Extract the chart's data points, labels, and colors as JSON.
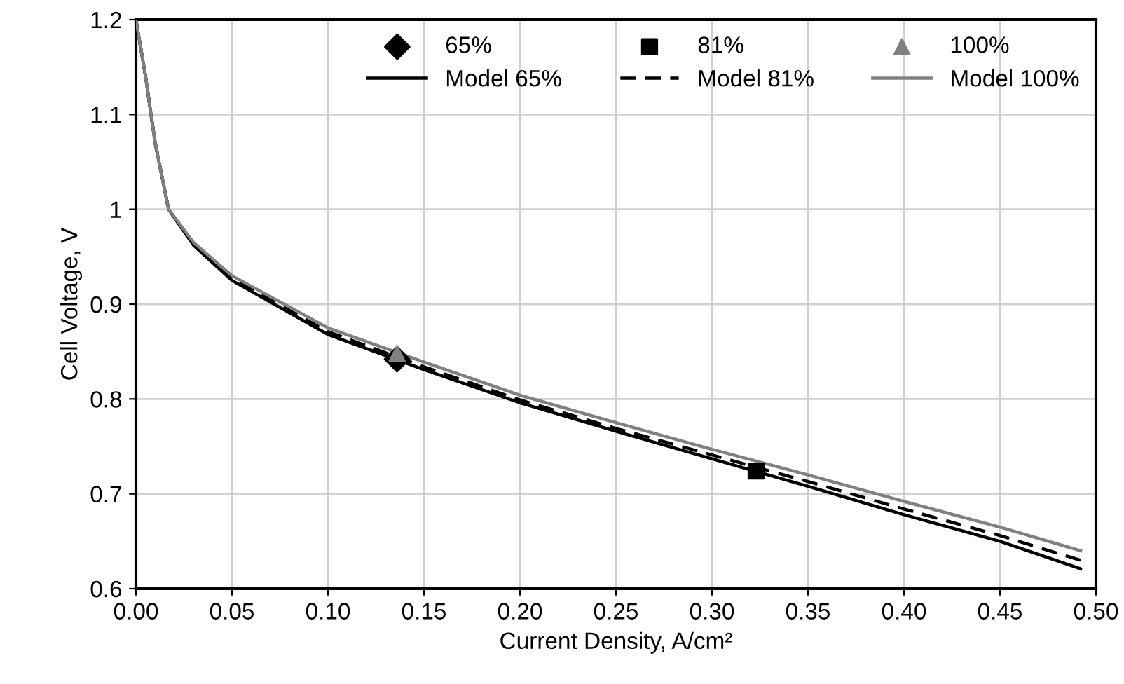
{
  "chart_data": {
    "type": "line",
    "xlabel": "Current Density, A/cm²",
    "ylabel": "Cell Voltage, V",
    "xlim": [
      0,
      0.5
    ],
    "ylim": [
      0.6,
      1.2
    ],
    "xticks": [
      {
        "value": 0,
        "label": "0.00"
      },
      {
        "value": 0.05,
        "label": "0.05"
      },
      {
        "value": 0.1,
        "label": "0.10"
      },
      {
        "value": 0.15,
        "label": "0.15"
      },
      {
        "value": 0.2,
        "label": "0.20"
      },
      {
        "value": 0.25,
        "label": "0.25"
      },
      {
        "value": 0.3,
        "label": "0.30"
      },
      {
        "value": 0.35,
        "label": "0.35"
      },
      {
        "value": 0.4,
        "label": "0.40"
      },
      {
        "value": 0.45,
        "label": "0.45"
      },
      {
        "value": 0.5,
        "label": "0.50"
      }
    ],
    "yticks": [
      0.6,
      0.7,
      0.8,
      0.9,
      1,
      1.1,
      1.2
    ],
    "grid": true,
    "legend": "top right",
    "series": [
      {
        "name": "65%",
        "type": "scatter",
        "marker": "diamond",
        "color": "#000000",
        "x": [
          0.136
        ],
        "values": [
          0.842
        ]
      },
      {
        "name": "Model 65%",
        "line_style": "solid",
        "color": "#000000",
        "x": [
          0,
          0.005,
          0.01,
          0.017,
          0.03,
          0.05,
          0.1,
          0.15,
          0.2,
          0.25,
          0.3,
          0.35,
          0.4,
          0.45,
          0.492
        ],
        "values": [
          1.2,
          1.14,
          1.07,
          1.0,
          0.962,
          0.925,
          0.868,
          0.831,
          0.796,
          0.766,
          0.737,
          0.708,
          0.678,
          0.65,
          0.621
        ]
      },
      {
        "name": "81%",
        "type": "scatter",
        "marker": "square",
        "color": "#000000",
        "x": [
          0.323
        ],
        "values": [
          0.724
        ]
      },
      {
        "name": "Model 81%",
        "line_style": "dashed",
        "color": "#000000",
        "x": [
          0,
          0.005,
          0.01,
          0.017,
          0.03,
          0.05,
          0.1,
          0.15,
          0.2,
          0.25,
          0.3,
          0.35,
          0.4,
          0.45,
          0.492
        ],
        "values": [
          1.2,
          1.14,
          1.07,
          1.0,
          0.963,
          0.927,
          0.871,
          0.834,
          0.799,
          0.769,
          0.741,
          0.713,
          0.684,
          0.656,
          0.63
        ]
      },
      {
        "name": "100%",
        "type": "scatter",
        "marker": "triangle",
        "color": "#808080",
        "x": [
          0.136
        ],
        "values": [
          0.848
        ]
      },
      {
        "name": "Model 100%",
        "line_style": "solid",
        "color": "#808080",
        "x": [
          0,
          0.005,
          0.01,
          0.017,
          0.03,
          0.05,
          0.1,
          0.15,
          0.2,
          0.25,
          0.3,
          0.35,
          0.4,
          0.45,
          0.492
        ],
        "values": [
          1.2,
          1.14,
          1.07,
          1.0,
          0.965,
          0.93,
          0.875,
          0.839,
          0.804,
          0.775,
          0.747,
          0.72,
          0.692,
          0.665,
          0.64
        ]
      }
    ]
  }
}
